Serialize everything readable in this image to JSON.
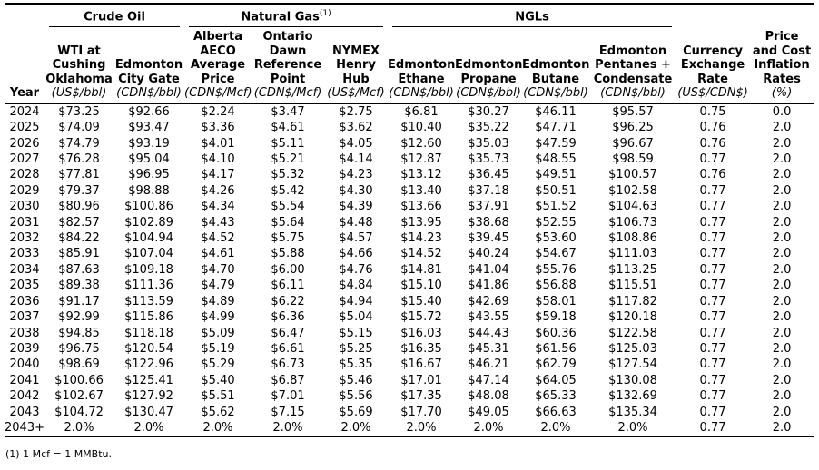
{
  "page": {
    "footnote": "(1) 1 Mcf = 1 MMBtu."
  },
  "colors": {
    "text": "#000000",
    "background": "#ffffff",
    "rule": "#000000"
  },
  "table": {
    "groups": [
      {
        "label": "Crude Oil",
        "sup": ""
      },
      {
        "label": "Natural Gas",
        "sup": "(1)"
      },
      {
        "label": "NGLs",
        "sup": ""
      }
    ],
    "columns": [
      {
        "name": "Year",
        "unit": ""
      },
      {
        "name": "WTI at\nCushing\nOklahoma",
        "unit": "(US$/bbl)"
      },
      {
        "name": "Edmonton\nCity Gate",
        "unit": "(CDN$/bbl)"
      },
      {
        "name": "Alberta\nAECO\nAverage\nPrice",
        "unit": "(CDN$/Mcf)"
      },
      {
        "name": "Ontario\nDawn\nReference\nPoint",
        "unit": "(CDN$/Mcf)"
      },
      {
        "name": "NYMEX\nHenry\nHub",
        "unit": "(US$/Mcf)"
      },
      {
        "name": "Edmonton\nEthane",
        "unit": "(CDN$/bbl)"
      },
      {
        "name": "Edmonton\nPropane",
        "unit": "(CDN$/bbl)"
      },
      {
        "name": "Edmonton\nButane",
        "unit": "(CDN$/bbl)"
      },
      {
        "name": "Edmonton\nPentanes +\nCondensate",
        "unit": "(CDN$/bbl)"
      },
      {
        "name": "Currency\nExchange\nRate",
        "unit": "(US$/CDN$)"
      },
      {
        "name": "Price\nand Cost\nInflation\nRates",
        "unit": "(%)"
      }
    ],
    "rows": [
      [
        "2024",
        "$73.25",
        "$92.66",
        "$2.24",
        "$3.47",
        "$2.75",
        "$6.81",
        "$30.27",
        "$46.11",
        "$95.57",
        "0.75",
        "0.0"
      ],
      [
        "2025",
        "$74.09",
        "$93.47",
        "$3.36",
        "$4.61",
        "$3.62",
        "$10.40",
        "$35.22",
        "$47.71",
        "$96.25",
        "0.76",
        "2.0"
      ],
      [
        "2026",
        "$74.79",
        "$93.19",
        "$4.01",
        "$5.11",
        "$4.05",
        "$12.60",
        "$35.03",
        "$47.59",
        "$96.67",
        "0.76",
        "2.0"
      ],
      [
        "2027",
        "$76.28",
        "$95.04",
        "$4.10",
        "$5.21",
        "$4.14",
        "$12.87",
        "$35.73",
        "$48.55",
        "$98.59",
        "0.77",
        "2.0"
      ],
      [
        "2028",
        "$77.81",
        "$96.95",
        "$4.17",
        "$5.32",
        "$4.23",
        "$13.12",
        "$36.45",
        "$49.51",
        "$100.57",
        "0.76",
        "2.0"
      ],
      [
        "2029",
        "$79.37",
        "$98.88",
        "$4.26",
        "$5.42",
        "$4.30",
        "$13.40",
        "$37.18",
        "$50.51",
        "$102.58",
        "0.77",
        "2.0"
      ],
      [
        "2030",
        "$80.96",
        "$100.86",
        "$4.34",
        "$5.54",
        "$4.39",
        "$13.66",
        "$37.91",
        "$51.52",
        "$104.63",
        "0.77",
        "2.0"
      ],
      [
        "2031",
        "$82.57",
        "$102.89",
        "$4.43",
        "$5.64",
        "$4.48",
        "$13.95",
        "$38.68",
        "$52.55",
        "$106.73",
        "0.77",
        "2.0"
      ],
      [
        "2032",
        "$84.22",
        "$104.94",
        "$4.52",
        "$5.75",
        "$4.57",
        "$14.23",
        "$39.45",
        "$53.60",
        "$108.86",
        "0.77",
        "2.0"
      ],
      [
        "2033",
        "$85.91",
        "$107.04",
        "$4.61",
        "$5.88",
        "$4.66",
        "$14.52",
        "$40.24",
        "$54.67",
        "$111.03",
        "0.77",
        "2.0"
      ],
      [
        "2034",
        "$87.63",
        "$109.18",
        "$4.70",
        "$6.00",
        "$4.76",
        "$14.81",
        "$41.04",
        "$55.76",
        "$113.25",
        "0.77",
        "2.0"
      ],
      [
        "2035",
        "$89.38",
        "$111.36",
        "$4.79",
        "$6.11",
        "$4.84",
        "$15.10",
        "$41.86",
        "$56.88",
        "$115.51",
        "0.77",
        "2.0"
      ],
      [
        "2036",
        "$91.17",
        "$113.59",
        "$4.89",
        "$6.22",
        "$4.94",
        "$15.40",
        "$42.69",
        "$58.01",
        "$117.82",
        "0.77",
        "2.0"
      ],
      [
        "2037",
        "$92.99",
        "$115.86",
        "$4.99",
        "$6.36",
        "$5.04",
        "$15.72",
        "$43.55",
        "$59.18",
        "$120.18",
        "0.77",
        "2.0"
      ],
      [
        "2038",
        "$94.85",
        "$118.18",
        "$5.09",
        "$6.47",
        "$5.15",
        "$16.03",
        "$44.43",
        "$60.36",
        "$122.58",
        "0.77",
        "2.0"
      ],
      [
        "2039",
        "$96.75",
        "$120.54",
        "$5.19",
        "$6.61",
        "$5.25",
        "$16.35",
        "$45.31",
        "$61.56",
        "$125.03",
        "0.77",
        "2.0"
      ],
      [
        "2040",
        "$98.69",
        "$122.96",
        "$5.29",
        "$6.73",
        "$5.35",
        "$16.67",
        "$46.21",
        "$62.79",
        "$127.54",
        "0.77",
        "2.0"
      ],
      [
        "2041",
        "$100.66",
        "$125.41",
        "$5.40",
        "$6.87",
        "$5.46",
        "$17.01",
        "$47.14",
        "$64.05",
        "$130.08",
        "0.77",
        "2.0"
      ],
      [
        "2042",
        "$102.67",
        "$127.92",
        "$5.51",
        "$7.01",
        "$5.56",
        "$17.35",
        "$48.08",
        "$65.33",
        "$132.69",
        "0.77",
        "2.0"
      ],
      [
        "2043",
        "$104.72",
        "$130.47",
        "$5.62",
        "$7.15",
        "$5.69",
        "$17.70",
        "$49.05",
        "$66.63",
        "$135.34",
        "0.77",
        "2.0"
      ],
      [
        "2043+",
        "2.0%",
        "2.0%",
        "2.0%",
        "2.0%",
        "2.0%",
        "2.0%",
        "2.0%",
        "2.0%",
        "2.0%",
        "0.77",
        "2.0"
      ]
    ]
  }
}
